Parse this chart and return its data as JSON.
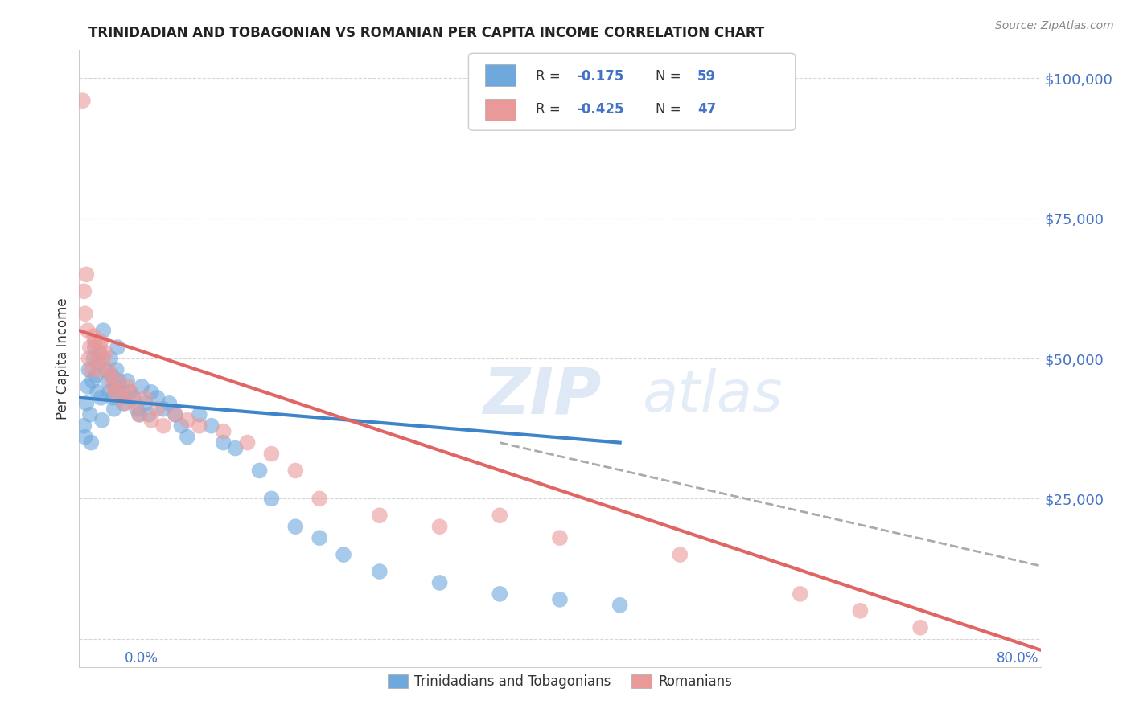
{
  "title": "TRINIDADIAN AND TOBAGONIAN VS ROMANIAN PER CAPITA INCOME CORRELATION CHART",
  "source": "Source: ZipAtlas.com",
  "ylabel": "Per Capita Income",
  "legend_label1": "Trinidadians and Tobagonians",
  "legend_label2": "Romanians",
  "color_blue": "#6fa8dc",
  "color_pink": "#ea9999",
  "color_blue_line": "#3d85c8",
  "color_pink_line": "#e06666",
  "color_dashed": "#aaaaaa",
  "title_color": "#222222",
  "axis_label_color": "#4472c4",
  "xlim": [
    0.0,
    0.8
  ],
  "ylim": [
    -5000,
    105000
  ],
  "yticks": [
    0,
    25000,
    50000,
    75000,
    100000
  ],
  "ytick_labels": [
    "",
    "$25,000",
    "$50,000",
    "$75,000",
    "$100,000"
  ],
  "blue_scatter_x": [
    0.004,
    0.005,
    0.006,
    0.007,
    0.008,
    0.009,
    0.01,
    0.011,
    0.012,
    0.013,
    0.014,
    0.015,
    0.016,
    0.017,
    0.018,
    0.019,
    0.02,
    0.022,
    0.024,
    0.025,
    0.026,
    0.027,
    0.028,
    0.029,
    0.03,
    0.031,
    0.032,
    0.033,
    0.035,
    0.037,
    0.04,
    0.042,
    0.045,
    0.048,
    0.05,
    0.052,
    0.055,
    0.058,
    0.06,
    0.065,
    0.07,
    0.075,
    0.08,
    0.085,
    0.09,
    0.1,
    0.11,
    0.12,
    0.13,
    0.15,
    0.16,
    0.18,
    0.2,
    0.22,
    0.25,
    0.3,
    0.35,
    0.4,
    0.45
  ],
  "blue_scatter_y": [
    38000,
    36000,
    42000,
    45000,
    48000,
    40000,
    35000,
    46000,
    50000,
    52000,
    47000,
    44000,
    49000,
    51000,
    43000,
    39000,
    55000,
    48000,
    46000,
    44000,
    50000,
    47000,
    43000,
    41000,
    45000,
    48000,
    52000,
    46000,
    44000,
    42000,
    46000,
    44000,
    43000,
    41000,
    40000,
    45000,
    42000,
    40000,
    44000,
    43000,
    41000,
    42000,
    40000,
    38000,
    36000,
    40000,
    38000,
    35000,
    34000,
    30000,
    25000,
    20000,
    18000,
    15000,
    12000,
    10000,
    8000,
    7000,
    6000
  ],
  "pink_scatter_x": [
    0.003,
    0.004,
    0.005,
    0.006,
    0.007,
    0.008,
    0.009,
    0.01,
    0.012,
    0.013,
    0.015,
    0.016,
    0.017,
    0.018,
    0.02,
    0.022,
    0.024,
    0.026,
    0.028,
    0.03,
    0.032,
    0.035,
    0.038,
    0.04,
    0.043,
    0.047,
    0.05,
    0.055,
    0.06,
    0.065,
    0.07,
    0.08,
    0.09,
    0.1,
    0.12,
    0.14,
    0.16,
    0.18,
    0.2,
    0.25,
    0.3,
    0.35,
    0.4,
    0.5,
    0.6,
    0.65,
    0.7
  ],
  "pink_scatter_y": [
    96000,
    62000,
    58000,
    65000,
    55000,
    50000,
    52000,
    48000,
    54000,
    53000,
    50000,
    48000,
    52000,
    53000,
    50000,
    51000,
    48000,
    47000,
    45000,
    44000,
    46000,
    43000,
    42000,
    45000,
    44000,
    42000,
    40000,
    43000,
    39000,
    41000,
    38000,
    40000,
    39000,
    38000,
    37000,
    35000,
    33000,
    30000,
    25000,
    22000,
    20000,
    22000,
    18000,
    15000,
    8000,
    5000,
    2000
  ],
  "blue_line_x": [
    0.0,
    0.45
  ],
  "blue_line_y": [
    43000,
    35000
  ],
  "pink_line_x": [
    0.0,
    0.8
  ],
  "pink_line_y": [
    55000,
    -2000
  ],
  "dashed_line_x": [
    0.35,
    0.8
  ],
  "dashed_line_y": [
    35000,
    13000
  ]
}
